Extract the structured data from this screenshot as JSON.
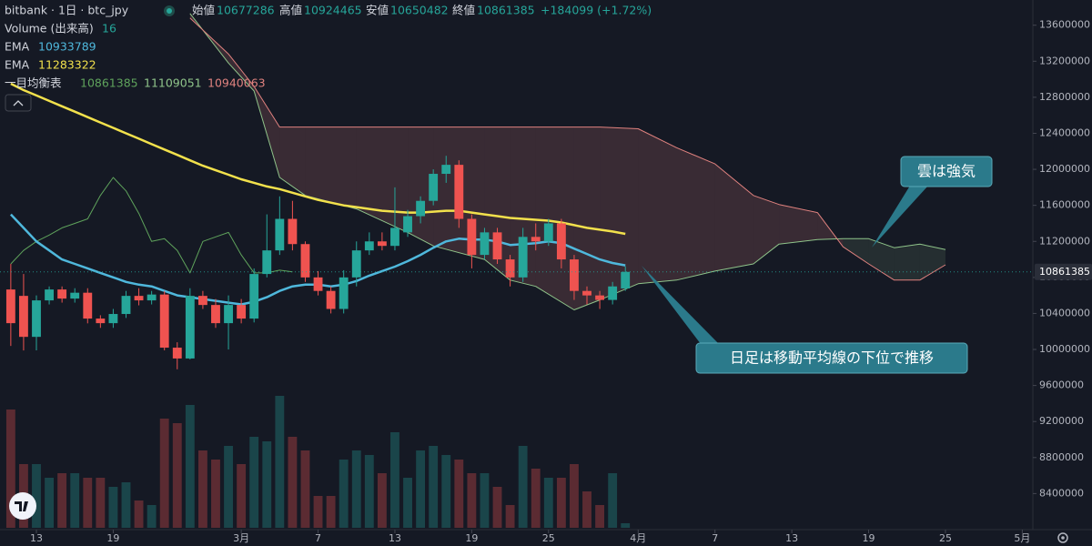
{
  "chart_data": {
    "type": "candlestick",
    "title": "bitbank · 1日 · btc_jpy",
    "ohlc_labels": [
      "始値",
      "高値",
      "安値",
      "終値"
    ],
    "change": "+184099 (+1.72%)",
    "up_color": "#26a69a",
    "down_color": "#ef5350",
    "x": [
      "02-11",
      "02-12",
      "02-13",
      "02-14",
      "02-15",
      "02-16",
      "02-17",
      "02-18",
      "02-19",
      "02-20",
      "02-21",
      "02-22",
      "02-23",
      "02-24",
      "02-25",
      "02-26",
      "02-27",
      "02-28",
      "03-01",
      "03-02",
      "03-03",
      "03-04",
      "03-05",
      "03-06",
      "03-07",
      "03-08",
      "03-09",
      "03-10",
      "03-11",
      "03-12",
      "03-13",
      "03-14",
      "03-15",
      "03-16",
      "03-17",
      "03-18",
      "03-19",
      "03-20",
      "03-21",
      "03-22",
      "03-23",
      "03-24",
      "03-25",
      "03-26",
      "03-27",
      "03-28",
      "03-29",
      "03-30",
      "03-31"
    ],
    "open": [
      10666000,
      10595000,
      10140000,
      10545000,
      10666000,
      10565000,
      10630000,
      10343000,
      10292000,
      10394000,
      10595000,
      10545000,
      10610000,
      10020000,
      9900000,
      10595000,
      10494000,
      10292000,
      10494000,
      10343000,
      10838000,
      11100000,
      11450000,
      11170000,
      10800000,
      10650000,
      10450000,
      10800000,
      11100000,
      11200000,
      11150000,
      11300000,
      11480000,
      11650000,
      11950000,
      12050000,
      11450000,
      11050000,
      11300000,
      11000000,
      10800000,
      11250000,
      11200000,
      11400000,
      11000000,
      10650000,
      10600000,
      10550000,
      10677286
    ],
    "high": [
      10950000,
      10838000,
      10600000,
      10700000,
      10700000,
      10680000,
      10680000,
      10380000,
      10450000,
      10650000,
      10680000,
      10650000,
      10650000,
      10080000,
      10680000,
      10650000,
      10560000,
      10600000,
      10560000,
      10900000,
      11500000,
      11700000,
      11650000,
      11200000,
      10870000,
      10700000,
      10880000,
      11200000,
      11300000,
      11300000,
      11800000,
      11550000,
      11700000,
      12000000,
      12150000,
      12100000,
      11500000,
      11350000,
      11350000,
      11050000,
      11350000,
      11400000,
      11450000,
      11450000,
      11050000,
      10700000,
      10650000,
      10750000,
      10924465
    ],
    "low": [
      10039000,
      9989000,
      9990000,
      10500000,
      10520000,
      10520000,
      10290000,
      10240000,
      10240000,
      10350000,
      10490000,
      10500000,
      9990000,
      9780000,
      9890000,
      10450000,
      10240000,
      10000000,
      10290000,
      10300000,
      10800000,
      11050000,
      11100000,
      10750000,
      10600000,
      10400000,
      10400000,
      10700000,
      11050000,
      11100000,
      11100000,
      11250000,
      11400000,
      11600000,
      11850000,
      11350000,
      10900000,
      11000000,
      10950000,
      10700000,
      10750000,
      11100000,
      11150000,
      10900000,
      10550000,
      10500000,
      10450000,
      10500000,
      10650482
    ],
    "close": [
      10292000,
      10140000,
      10545000,
      10666000,
      10565000,
      10630000,
      10343000,
      10292000,
      10394000,
      10595000,
      10545000,
      10610000,
      10020000,
      9900000,
      10595000,
      10494000,
      10292000,
      10494000,
      10343000,
      10838000,
      11100000,
      11450000,
      11170000,
      10800000,
      10650000,
      10450000,
      10800000,
      11100000,
      11200000,
      11150000,
      11350000,
      11480000,
      11650000,
      11950000,
      12050000,
      11450000,
      11050000,
      11300000,
      11000000,
      10800000,
      11250000,
      11200000,
      11400000,
      11000000,
      10650000,
      10600000,
      10550000,
      10700000,
      10861385
    ],
    "volume": {
      "name": "Volume (出来高)",
      "values": [
        416,
        224,
        224,
        176,
        192,
        192,
        176,
        176,
        144,
        160,
        96,
        80,
        384,
        368,
        432,
        272,
        240,
        288,
        224,
        320,
        304,
        464,
        320,
        272,
        112,
        112,
        240,
        272,
        256,
        192,
        336,
        176,
        272,
        288,
        256,
        240,
        192,
        192,
        144,
        80,
        288,
        208,
        176,
        176,
        224,
        128,
        80,
        192,
        16
      ]
    },
    "series": [
      {
        "name": "EMA",
        "color": "#4fb8dc",
        "values": [
          11500000,
          11350000,
          11200000,
          11100000,
          11000000,
          10950000,
          10900000,
          10850000,
          10800000,
          10750000,
          10720000,
          10700000,
          10650000,
          10600000,
          10580000,
          10560000,
          10540000,
          10520000,
          10500000,
          10530000,
          10580000,
          10650000,
          10700000,
          10720000,
          10720000,
          10700000,
          10720000,
          10760000,
          10820000,
          10870000,
          10920000,
          10980000,
          11050000,
          11130000,
          11200000,
          11230000,
          11220000,
          11220000,
          11200000,
          11160000,
          11170000,
          11180000,
          11200000,
          11180000,
          11120000,
          11060000,
          11000000,
          10960000,
          10933789
        ]
      },
      {
        "name": "EMA",
        "color": "#f2e14c",
        "values": [
          12950000,
          12880000,
          12820000,
          12760000,
          12700000,
          12640000,
          12580000,
          12520000,
          12460000,
          12400000,
          12340000,
          12280000,
          12220000,
          12160000,
          12100000,
          12040000,
          11990000,
          11940000,
          11890000,
          11850000,
          11810000,
          11780000,
          11740000,
          11700000,
          11660000,
          11630000,
          11600000,
          11580000,
          11560000,
          11540000,
          11530000,
          11520000,
          11520000,
          11530000,
          11540000,
          11540000,
          11520000,
          11500000,
          11480000,
          11460000,
          11450000,
          11440000,
          11430000,
          11410000,
          11380000,
          11350000,
          11330000,
          11310000,
          11283322
        ]
      }
    ],
    "ichimoku": {
      "name": "一目均衡表",
      "lagging": {
        "color": "#5fa35c",
        "x": [
          "02-11",
          "02-12",
          "02-13",
          "02-14",
          "02-15",
          "02-16",
          "02-17",
          "02-18",
          "02-19",
          "02-20",
          "02-21",
          "02-22",
          "02-23",
          "02-24",
          "02-25",
          "02-26",
          "02-27",
          "02-28",
          "03-01",
          "03-02",
          "03-03",
          "03-04",
          "03-05"
        ],
        "values": [
          10950000,
          11100000,
          11200000,
          11270000,
          11350000,
          11400000,
          11450000,
          11710000,
          11910000,
          11760000,
          11510000,
          11200000,
          11230000,
          11100000,
          10850000,
          11200000,
          11250000,
          11300000,
          11050000,
          10850000,
          10850000,
          10880000,
          10861385
        ]
      },
      "leading": {
        "x": [
          "02-25",
          "02-28",
          "03-02",
          "03-04",
          "03-06",
          "03-10",
          "03-14",
          "03-16",
          "03-20",
          "03-22",
          "03-24",
          "03-27",
          "03-29",
          "04-01",
          "04-04",
          "04-07",
          "04-10",
          "04-12",
          "04-15",
          "04-17",
          "04-19",
          "04-21",
          "04-23",
          "04-25"
        ],
        "a_color": "#8fc48a",
        "b_color": "#e0827f",
        "a": [
          13730000,
          13180000,
          12870000,
          11910000,
          11710000,
          11560000,
          11300000,
          11150000,
          11000000,
          10770000,
          10700000,
          10440000,
          10550000,
          10730000,
          10770000,
          10870000,
          10950000,
          11170000,
          11220000,
          11230000,
          11230000,
          11130000,
          11170000,
          11109051
        ],
        "b": [
          13680000,
          13280000,
          12920000,
          12470000,
          12470000,
          12470000,
          12470000,
          12470000,
          12470000,
          12470000,
          12470000,
          12470000,
          12470000,
          12450000,
          12240000,
          12060000,
          11710000,
          11610000,
          11520000,
          11140000,
          10950000,
          10770000,
          10770000,
          10940063
        ]
      }
    },
    "ylim": [
      8020000,
      13880000
    ],
    "yticks": [
      13600000,
      13200000,
      12800000,
      12400000,
      12000000,
      11600000,
      11200000,
      10800000,
      10400000,
      10000000,
      9600000,
      9200000,
      8800000,
      8400000
    ],
    "xticks": [
      {
        "value": "02-13",
        "label": "13"
      },
      {
        "value": "02-19",
        "label": "19"
      },
      {
        "value": "03-01",
        "label": "3月"
      },
      {
        "value": "03-07",
        "label": "7"
      },
      {
        "value": "03-13",
        "label": "13"
      },
      {
        "value": "03-19",
        "label": "19"
      },
      {
        "value": "03-25",
        "label": "25"
      },
      {
        "value": "04-01",
        "label": "4月"
      },
      {
        "value": "04-07",
        "label": "7"
      },
      {
        "value": "04-13",
        "label": "13"
      },
      {
        "value": "04-19",
        "label": "19"
      },
      {
        "value": "04-25",
        "label": "25"
      },
      {
        "value": "05-01",
        "label": "5月"
      }
    ],
    "annotations": [
      "雲は強気",
      "日足は移動平均線の下位で推移"
    ]
  }
}
